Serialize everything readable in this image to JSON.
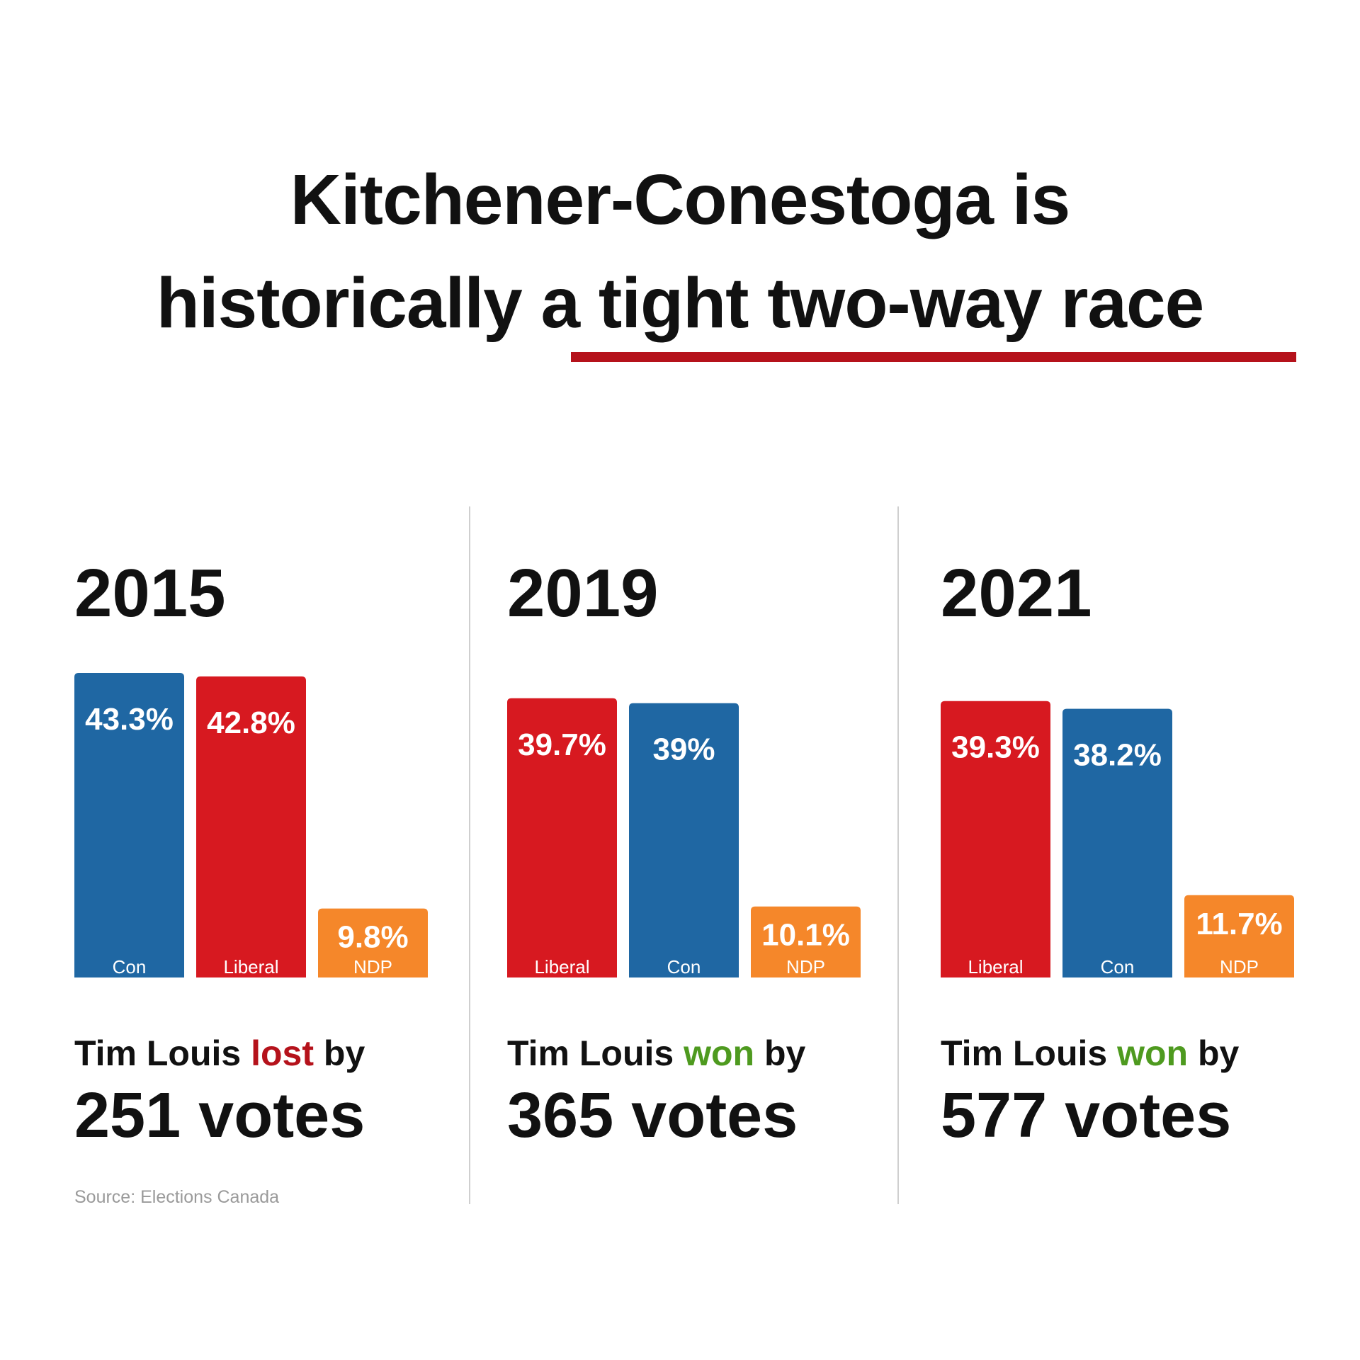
{
  "title": {
    "line1": "Kitchener-Conestoga is",
    "line2": "historically a tight two-way race",
    "underline_color": "#b5121b"
  },
  "colors": {
    "Con": "#1f67a3",
    "Liberal": "#d71920",
    "NDP": "#f5872a",
    "lost": "#b5121b",
    "won": "#4e9a1f"
  },
  "chart_data": [
    {
      "type": "bar",
      "title": "2015",
      "categories": [
        "Con",
        "Liberal",
        "NDP"
      ],
      "values": [
        43.3,
        42.8,
        9.8
      ],
      "value_labels": [
        "43.3%",
        "42.8%",
        "9.8%"
      ],
      "xlabel": "",
      "ylabel": "",
      "ylim": [
        0,
        43.3
      ]
    },
    {
      "type": "bar",
      "title": "2019",
      "categories": [
        "Liberal",
        "Con",
        "NDP"
      ],
      "values": [
        39.7,
        39,
        10.1
      ],
      "value_labels": [
        "39.7%",
        "39%",
        "10.1%"
      ],
      "xlabel": "",
      "ylabel": "",
      "ylim": [
        0,
        43.3
      ]
    },
    {
      "type": "bar",
      "title": "2021",
      "categories": [
        "Liberal",
        "Con",
        "NDP"
      ],
      "values": [
        39.3,
        38.2,
        11.7
      ],
      "value_labels": [
        "39.3%",
        "38.2%",
        "11.7%"
      ],
      "xlabel": "",
      "ylabel": "",
      "ylim": [
        0,
        43.3
      ]
    }
  ],
  "results": [
    {
      "prefix": "Tim Louis ",
      "outcome": "lost",
      "suffix": " by",
      "votes": "251 votes"
    },
    {
      "prefix": "Tim Louis ",
      "outcome": "won",
      "suffix": " by",
      "votes": "365 votes"
    },
    {
      "prefix": "Tim Louis ",
      "outcome": "won",
      "suffix": " by",
      "votes": "577 votes"
    }
  ],
  "source": "Source: Elections Canada"
}
